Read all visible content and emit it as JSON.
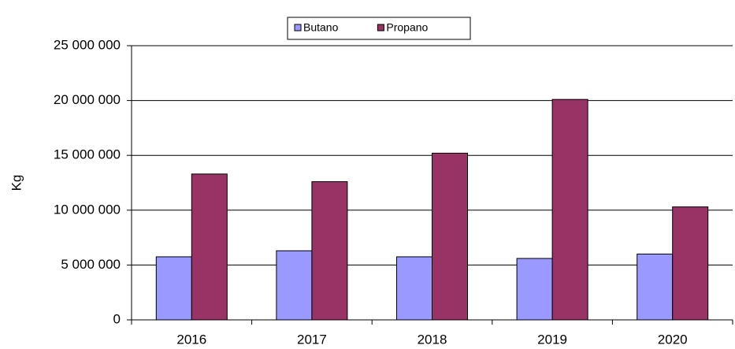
{
  "chart_data": {
    "type": "bar",
    "y_label": "Kg",
    "categories": [
      "2016",
      "2017",
      "2018",
      "2019",
      "2020"
    ],
    "series": [
      {
        "name": "Butano",
        "color": "#9999ff",
        "values": [
          5750000,
          6300000,
          5750000,
          5600000,
          6000000
        ]
      },
      {
        "name": "Propano",
        "color": "#993366",
        "values": [
          13300000,
          12600000,
          15200000,
          20100000,
          10300000
        ]
      }
    ],
    "ylim": [
      0,
      25000000
    ],
    "yticks": [
      0,
      {
        "value": 5000000,
        "label": "5 000 000"
      },
      {
        "value": 10000000,
        "label": "10 000 000"
      },
      {
        "value": 15000000,
        "label": "15 000 000"
      },
      {
        "value": 20000000,
        "label": "20 000 000"
      },
      {
        "value": 25000000,
        "label": "25 000 000"
      }
    ],
    "grid": true,
    "legend": "top"
  }
}
